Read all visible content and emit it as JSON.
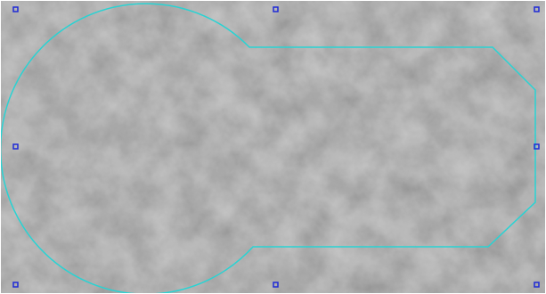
{
  "canvas": {
    "background_base": "#6f6f6f",
    "texture_dark": "#5e5e5e",
    "texture_light": "#7f7f7f"
  },
  "shape": {
    "stroke_color": "#29d3d3",
    "type": "keyhole-shape-outline"
  },
  "selection": {
    "handle_color": "#1f2ad6",
    "handle_count": 8
  }
}
